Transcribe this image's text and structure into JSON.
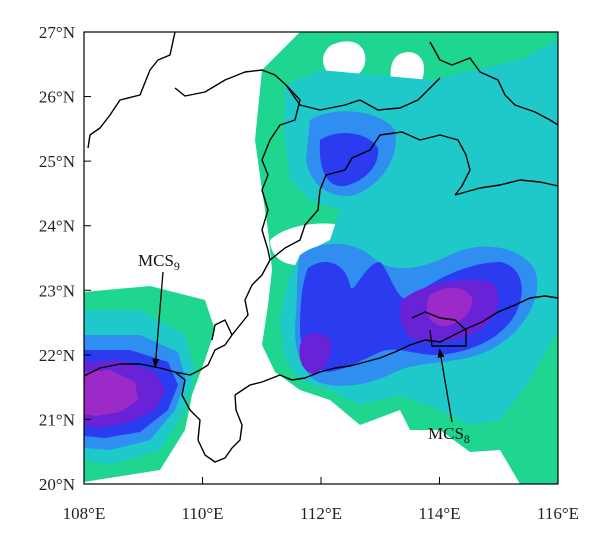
{
  "chart_data": {
    "type": "heatmap",
    "x_axis": {
      "ticks": [
        "108°E",
        "110°E",
        "112°E",
        "114°E",
        "116°E"
      ],
      "values": [
        108,
        110,
        112,
        114,
        116
      ],
      "range": [
        108,
        116
      ]
    },
    "y_axis": {
      "ticks": [
        "20°N",
        "21°N",
        "22°N",
        "23°N",
        "24°N",
        "25°N",
        "26°N",
        "27°N"
      ],
      "values": [
        20,
        21,
        22,
        23,
        24,
        25,
        26,
        27
      ],
      "range": [
        20,
        27
      ]
    },
    "levels_colors": [
      "#1fd690",
      "#1fc9c9",
      "#2f8ef0",
      "#2b3cf0",
      "#6a22d6",
      "#9b2ac8"
    ],
    "annotations": [
      {
        "name": "mcs9",
        "base": "MCS",
        "sub": "9",
        "arrow_to": [
          109.2,
          21.8
        ]
      },
      {
        "name": "mcs8",
        "base": "MCS",
        "sub": "8",
        "arrow_to": [
          114.0,
          22.1
        ]
      }
    ]
  }
}
